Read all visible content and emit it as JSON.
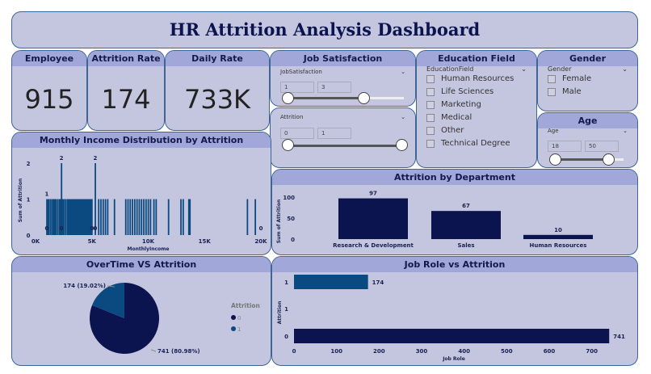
{
  "title": "HR Attrition Analysis Dashboard",
  "kpis": [
    {
      "label": "Employee",
      "value": "915"
    },
    {
      "label": "Attrition Rate",
      "value": "174"
    },
    {
      "label": "Daily Rate",
      "value": "733K"
    }
  ],
  "job_satisfaction": {
    "header": "Job Satisfaction",
    "field": "JobSatisfaction",
    "min": "1",
    "max": "3",
    "range": [
      1,
      4
    ]
  },
  "attrition_slicer": {
    "field": "Attrition",
    "min": "0",
    "max": "1"
  },
  "education": {
    "header": "Education Field",
    "field": "EducationField",
    "options": [
      "Human Resources",
      "Life Sciences",
      "Marketing",
      "Medical",
      "Other",
      "Technical Degree"
    ]
  },
  "gender": {
    "header": "Gender",
    "field": "Gender",
    "options": [
      "Female",
      "Male"
    ]
  },
  "age": {
    "header": "Age",
    "field": "Age",
    "min": "18",
    "max": "50"
  },
  "colors": {
    "dark": "#0c1450",
    "mid": "#0b4a80",
    "panel": "#c4c6df",
    "header": "#a2a7d9"
  },
  "chart_data": [
    {
      "type": "bar",
      "title": "Monthly Income Distribution by Attrition",
      "xlabel": "MonthlyIncome",
      "ylabel": "Sum of Attrition",
      "xlim": [
        0,
        20000
      ],
      "ylim": [
        0,
        2
      ],
      "xticks": [
        "0K",
        "5K",
        "10K",
        "15K",
        "20K"
      ],
      "yticks": [
        "0",
        "1",
        "2"
      ],
      "x": [
        1000,
        1100,
        1200,
        1350,
        1500,
        1600,
        1700,
        1800,
        1950,
        2100,
        2200,
        2300,
        2400,
        2500,
        2650,
        2800,
        2900,
        3000,
        3100,
        3200,
        3300,
        3400,
        3500,
        3600,
        3700,
        3800,
        3900,
        4000,
        4100,
        4200,
        4300,
        4400,
        4500,
        4600,
        4700,
        4800,
        4900,
        5000,
        5300,
        5600,
        5800,
        6000,
        6200,
        6400,
        7000,
        8000,
        8200,
        8400,
        8600,
        8800,
        9000,
        9200,
        9400,
        9600,
        9800,
        10000,
        10200,
        10500,
        10700,
        11800,
        12900,
        13100,
        13600,
        13700,
        18800,
        19500
      ],
      "values": [
        1,
        1,
        1,
        1,
        1,
        1,
        1,
        1,
        1,
        1,
        1,
        2,
        1,
        1,
        1,
        1,
        1,
        1,
        1,
        1,
        1,
        1,
        1,
        1,
        1,
        1,
        1,
        1,
        1,
        1,
        1,
        1,
        1,
        1,
        1,
        1,
        1,
        1,
        2,
        1,
        1,
        1,
        1,
        1,
        1,
        1,
        1,
        1,
        1,
        1,
        1,
        1,
        1,
        1,
        1,
        1,
        1,
        1,
        1,
        1,
        1,
        1,
        1,
        1,
        1,
        1
      ],
      "data_labels": [
        {
          "x": 1000,
          "text": "1",
          "y": 1
        },
        {
          "x": 2300,
          "text": "2",
          "y": 2
        },
        {
          "x": 5300,
          "text": "2",
          "y": 2
        },
        {
          "x": 1000,
          "text": "0",
          "y": 0
        },
        {
          "x": 2300,
          "text": "0",
          "y": 0
        },
        {
          "x": 5000,
          "text": "0",
          "y": 0
        },
        {
          "x": 5300,
          "text": "0",
          "y": 0
        },
        {
          "x": 20000,
          "text": "0",
          "y": 0
        }
      ]
    },
    {
      "type": "bar",
      "title": "Attrition by Department",
      "ylabel": "Sum of Attrition",
      "ylim": [
        0,
        100
      ],
      "yticks": [
        "0",
        "50",
        "100"
      ],
      "categories": [
        "Research & Development",
        "Sales",
        "Human Resources"
      ],
      "values": [
        97,
        67,
        10
      ]
    },
    {
      "type": "pie",
      "title": "OverTime VS Attrition",
      "legend_title": "Attrition",
      "slices": [
        {
          "name": "0",
          "value": 741,
          "label": "741 (80.98%)"
        },
        {
          "name": "1",
          "value": 174,
          "label": "174 (19.02%)"
        }
      ],
      "legend": "right"
    },
    {
      "type": "bar",
      "orientation": "horizontal",
      "title": "Job Role vs Attrition",
      "xlabel": "Job Role",
      "ylabel": "Attrition",
      "categories": [
        "1",
        "1",
        "0"
      ],
      "values": [
        174,
        null,
        741
      ],
      "xlim": [
        0,
        750
      ],
      "xticks": [
        "0",
        "100",
        "200",
        "300",
        "400",
        "500",
        "600",
        "700"
      ]
    }
  ]
}
